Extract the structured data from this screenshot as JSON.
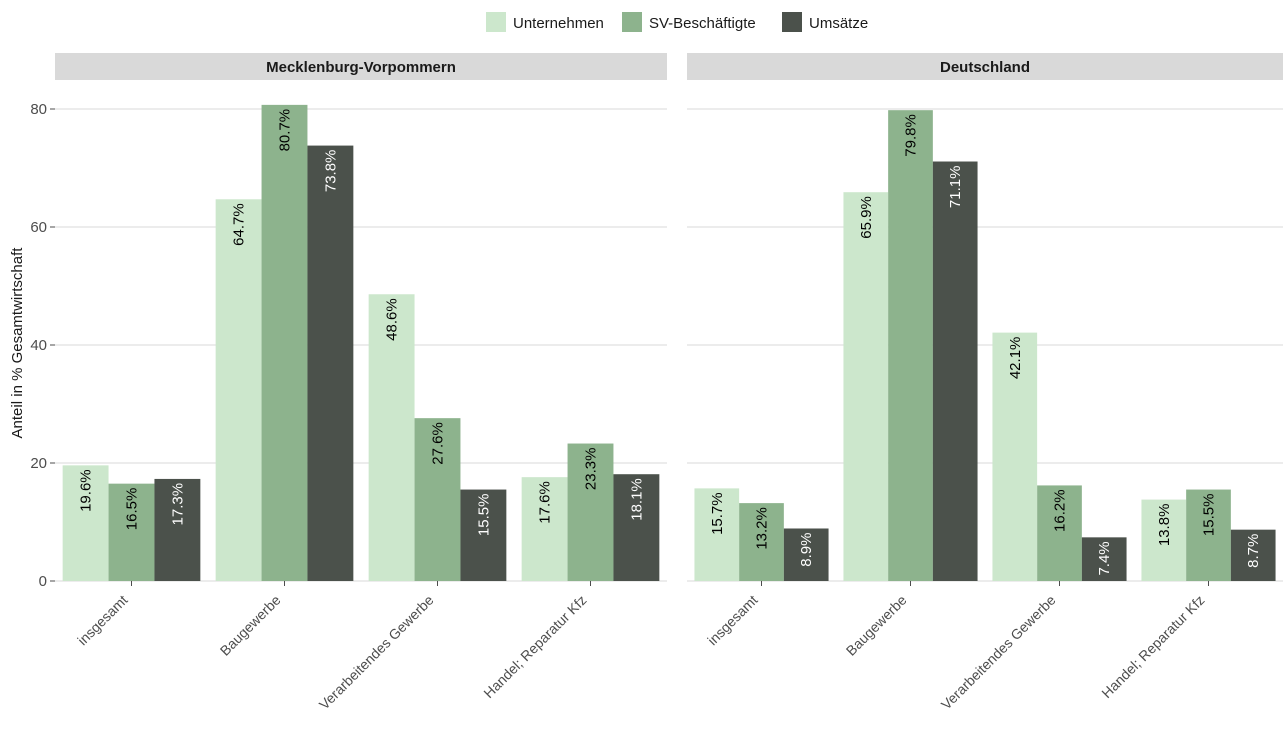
{
  "chart_data": {
    "type": "bar",
    "ylabel": "Anteil in % Gesamtwirtschaft",
    "ylim": [
      0,
      80
    ],
    "yticks": [
      0,
      20,
      40,
      60,
      80
    ],
    "grid": true,
    "legend_position": "top",
    "categories": [
      "insgesamt",
      "Baugewerbe",
      "Verarbeitendes Gewerbe",
      "Handel; Reparatur Kfz"
    ],
    "series": [
      {
        "name": "Unternehmen",
        "color": "#cce7cc",
        "label_color": "#000000"
      },
      {
        "name": "SV-Beschäftigte",
        "color": "#8db38d",
        "label_color": "#000000"
      },
      {
        "name": "Umsätze",
        "color": "#4b514b",
        "label_color": "#ffffff"
      }
    ],
    "panels": [
      {
        "title": "Mecklenburg-Vorpommern",
        "values": [
          [
            19.6,
            16.5,
            17.3
          ],
          [
            64.7,
            80.7,
            73.8
          ],
          [
            48.6,
            27.6,
            15.5
          ],
          [
            17.6,
            23.3,
            18.1
          ]
        ],
        "labels": [
          [
            "19.6%",
            "16.5%",
            "17.3%"
          ],
          [
            "64.7%",
            "80.7%",
            "73.8%"
          ],
          [
            "48.6%",
            "27.6%",
            "15.5%"
          ],
          [
            "17.6%",
            "23.3%",
            "18.1%"
          ]
        ]
      },
      {
        "title": "Deutschland",
        "values": [
          [
            15.7,
            13.2,
            8.9
          ],
          [
            65.9,
            79.8,
            71.1
          ],
          [
            42.1,
            16.2,
            7.4
          ],
          [
            13.8,
            15.5,
            8.7
          ]
        ],
        "labels": [
          [
            "15.7%",
            "13.2%",
            "8.9%"
          ],
          [
            "65.9%",
            "79.8%",
            "71.1%"
          ],
          [
            "42.1%",
            "16.2%",
            "7.4%"
          ],
          [
            "13.8%",
            "15.5%",
            "8.7%"
          ]
        ]
      }
    ]
  }
}
